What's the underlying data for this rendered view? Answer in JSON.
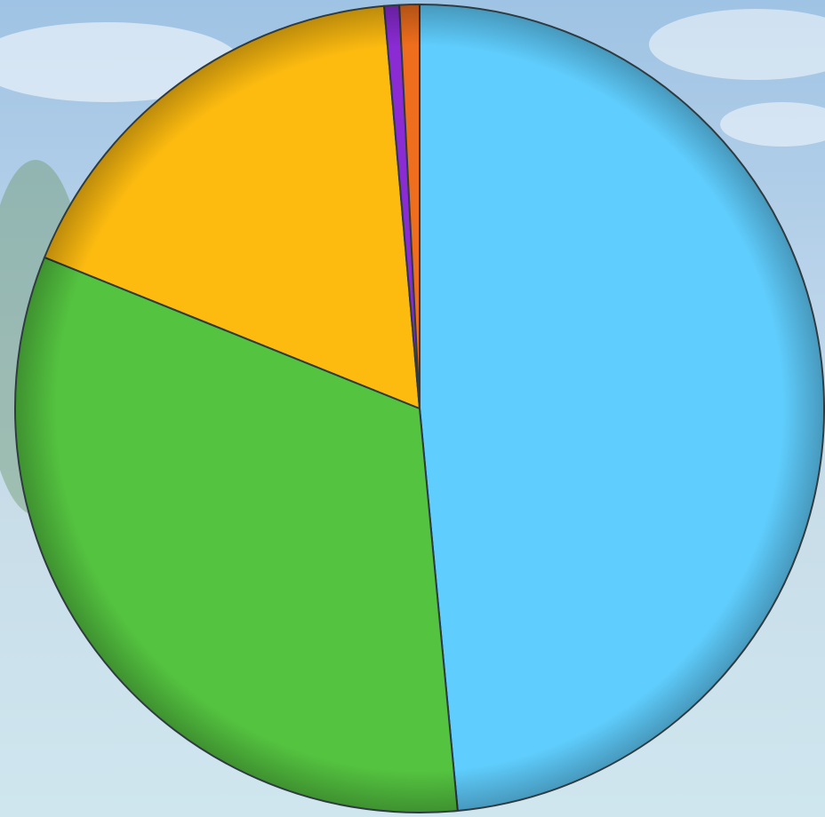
{
  "chart_data": {
    "type": "pie",
    "categories": [
      null,
      null,
      null,
      null,
      null
    ],
    "values": [
      48.5,
      32.6,
      17.5,
      0.6,
      0.8
    ],
    "colors": [
      "#5fcdfd",
      "#54c340",
      "#fdbb10",
      "#8a2bd4",
      "#ef6e1d"
    ]
  }
}
